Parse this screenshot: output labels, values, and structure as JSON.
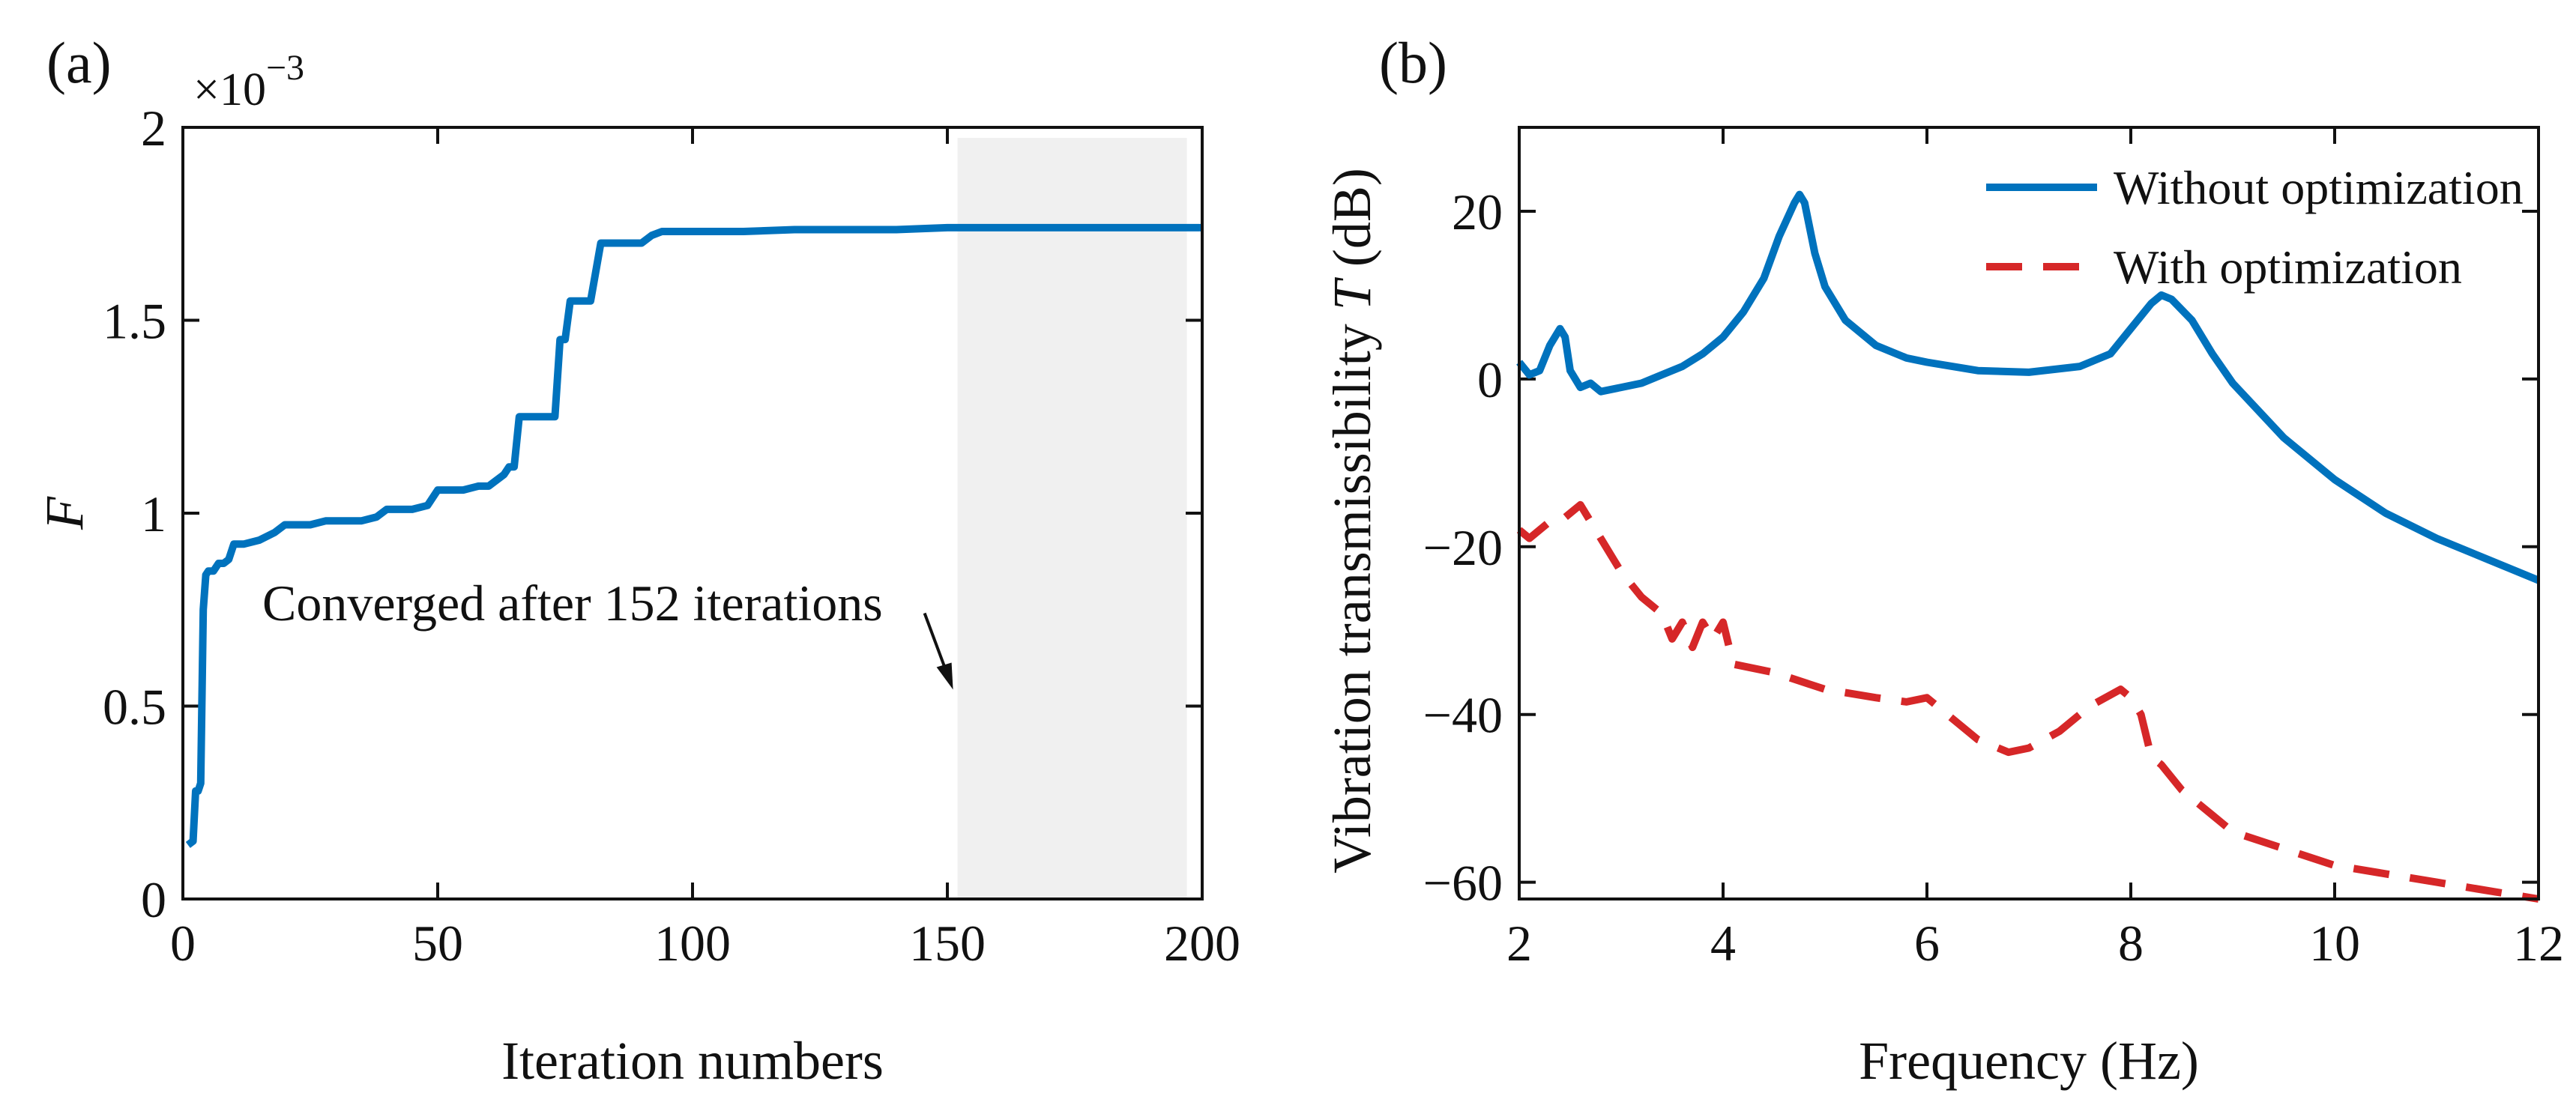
{
  "chart_data": [
    {
      "type": "line",
      "panel_label": "(a)",
      "xlabel": "Iteration numbers",
      "ylabel": "F",
      "xlim": [
        0,
        200
      ],
      "ylim": [
        0,
        2
      ],
      "xticks": [
        0,
        50,
        100,
        150,
        200
      ],
      "xtick_labels": [
        "0",
        "50",
        "100",
        "150",
        "200"
      ],
      "yticks": [
        0,
        0.5,
        1,
        1.5,
        2
      ],
      "ytick_labels": [
        "0",
        "0.5",
        "1",
        "1.5",
        "2"
      ],
      "y_exponent": {
        "times": "×10",
        "power": "−3"
      },
      "grid": false,
      "shaded_region": {
        "x_start": 152,
        "x_end": 197,
        "color": "#f0f0f0"
      },
      "annotation": {
        "text": "Converged after 152 iterations",
        "arrow_to": [
          152,
          0.5
        ]
      },
      "series": [
        {
          "name": "F",
          "color": "#0072bd",
          "x": [
            1,
            2,
            2.5,
            3,
            3.5,
            4,
            4.5,
            5,
            6,
            7,
            8,
            9,
            10,
            12,
            15,
            18,
            20,
            22,
            25,
            28,
            30,
            35,
            38,
            40,
            45,
            48,
            50,
            55,
            58,
            60,
            62,
            63,
            64,
            65,
            66,
            70,
            73,
            74,
            75,
            76,
            78,
            80,
            82,
            84,
            86,
            88,
            90,
            92,
            94,
            100,
            110,
            120,
            130,
            140,
            150,
            152,
            160,
            170,
            180,
            190,
            200
          ],
          "y": [
            0.14,
            0.15,
            0.28,
            0.28,
            0.3,
            0.75,
            0.84,
            0.85,
            0.85,
            0.87,
            0.87,
            0.88,
            0.92,
            0.92,
            0.93,
            0.95,
            0.97,
            0.97,
            0.97,
            0.98,
            0.98,
            0.98,
            0.99,
            1.01,
            1.01,
            1.02,
            1.06,
            1.06,
            1.07,
            1.07,
            1.09,
            1.1,
            1.12,
            1.12,
            1.25,
            1.25,
            1.25,
            1.45,
            1.45,
            1.55,
            1.55,
            1.55,
            1.7,
            1.7,
            1.7,
            1.7,
            1.7,
            1.72,
            1.73,
            1.73,
            1.73,
            1.735,
            1.735,
            1.735,
            1.74,
            1.74,
            1.74,
            1.74,
            1.74,
            1.74,
            1.74
          ]
        }
      ]
    },
    {
      "type": "line",
      "panel_label": "(b)",
      "xlabel": "Frequency (Hz)",
      "ylabel_prefix": "Vibration transmissibility",
      "ylabel_symbol": "T",
      "ylabel_suffix": "(dB)",
      "xlim": [
        2,
        12
      ],
      "ylim": [
        -62,
        30
      ],
      "xticks": [
        2,
        4,
        6,
        8,
        10,
        12
      ],
      "xtick_labels": [
        "2",
        "4",
        "6",
        "8",
        "10",
        "12"
      ],
      "yticks": [
        -60,
        -40,
        -20,
        0,
        20
      ],
      "ytick_labels": [
        "−60",
        "−40",
        "−20",
        "0",
        "20"
      ],
      "grid": false,
      "legend_position": "top-right",
      "series": [
        {
          "name": "Without optimization",
          "color": "#0072bd",
          "style": "solid",
          "x": [
            2.0,
            2.1,
            2.2,
            2.3,
            2.4,
            2.45,
            2.5,
            2.6,
            2.7,
            2.8,
            3.0,
            3.2,
            3.4,
            3.6,
            3.8,
            4.0,
            4.2,
            4.4,
            4.55,
            4.7,
            4.75,
            4.8,
            4.9,
            5.0,
            5.2,
            5.5,
            5.8,
            6.0,
            6.5,
            7.0,
            7.5,
            7.8,
            8.0,
            8.2,
            8.3,
            8.4,
            8.6,
            8.8,
            9.0,
            9.5,
            10.0,
            10.5,
            11.0,
            11.5,
            12.0
          ],
          "y": [
            2,
            0.5,
            1,
            4,
            6,
            5,
            1,
            -1,
            -0.5,
            -1.5,
            -1,
            -0.5,
            0.5,
            1.5,
            3,
            5,
            8,
            12,
            17,
            21,
            22,
            21,
            15,
            11,
            7,
            4,
            2.5,
            2,
            1,
            0.8,
            1.5,
            3,
            6,
            9,
            10,
            9.5,
            7,
            3,
            -0.5,
            -7,
            -12,
            -16,
            -19,
            -21.5,
            -24
          ]
        },
        {
          "name": "With optimization",
          "color": "#d62728",
          "style": "dashed",
          "x": [
            2.0,
            2.1,
            2.2,
            2.3,
            2.4,
            2.5,
            2.6,
            2.7,
            2.8,
            3.0,
            3.2,
            3.4,
            3.5,
            3.6,
            3.7,
            3.8,
            3.9,
            4.0,
            4.1,
            4.5,
            5.0,
            5.5,
            5.8,
            6.0,
            6.2,
            6.5,
            6.8,
            7.0,
            7.3,
            7.6,
            7.9,
            8.0,
            8.1,
            8.2,
            8.3,
            8.5,
            8.8,
            9.0,
            9.5,
            10.0,
            10.5,
            11.0,
            11.5,
            12.0
          ],
          "y": [
            -18,
            -19,
            -18,
            -17,
            -17,
            -16,
            -15,
            -17,
            -19,
            -23,
            -26,
            -28,
            -31,
            -29,
            -32,
            -29,
            -31,
            -29,
            -34,
            -35,
            -37,
            -38,
            -38.5,
            -38,
            -40,
            -43,
            -44.5,
            -44,
            -42,
            -39,
            -37,
            -38,
            -40,
            -45,
            -46,
            -49,
            -52,
            -54,
            -56,
            -58,
            -59,
            -60,
            -61,
            -62
          ]
        }
      ]
    }
  ]
}
